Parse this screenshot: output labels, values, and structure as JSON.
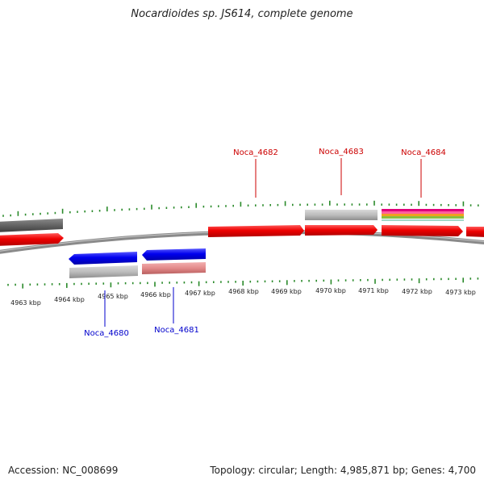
{
  "title": "Nocardioides sp. JS614, complete genome",
  "accession": "Accession: NC_008699",
  "summary": "Topology: circular; Length: 4,985,871 bp; Genes: 4,700",
  "colors": {
    "tick": "#2a8a2a",
    "forward_cds": "#ee0000",
    "reverse_cds": "#0000ee",
    "gene_box": "#b8b8b8",
    "gene_box_pink": "#e38a8a",
    "backbone": "#7a7a7a",
    "forward_label": "#cc0000",
    "reverse_label": "#0000cc"
  },
  "scale": {
    "kbp_labels": [
      "4963 kbp",
      "4964 kbp",
      "4965 kbp",
      "4966 kbp",
      "4967 kbp",
      "4968 kbp",
      "4969 kbp",
      "4970 kbp",
      "4971 kbp",
      "4972 kbp",
      "4973 kbp"
    ]
  },
  "genes": {
    "forward": [
      {
        "label": "Noca_4682"
      },
      {
        "label": "Noca_4683"
      },
      {
        "label": "Noca_4684"
      }
    ],
    "reverse": [
      {
        "label": "Noca_4680"
      },
      {
        "label": "Noca_4681"
      }
    ]
  }
}
